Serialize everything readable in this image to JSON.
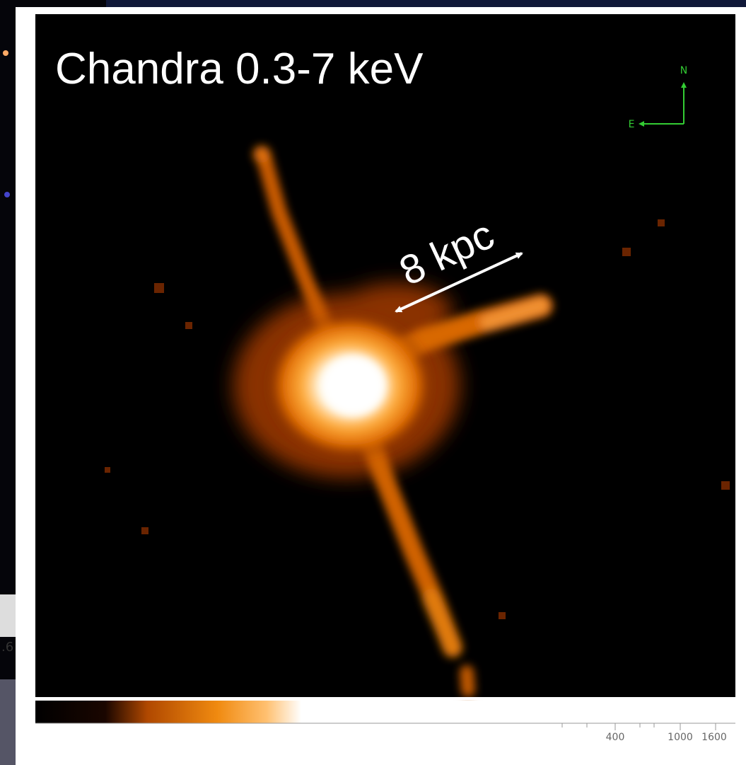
{
  "image": {
    "title": "Chandra 0.3-7 keV",
    "compass": {
      "north": "N",
      "east": "E"
    },
    "scale_label": "8 kpc",
    "colorbar": {
      "labels": [
        "400",
        "1000",
        "1600"
      ]
    }
  },
  "background": {
    "left_label": ".6"
  }
}
